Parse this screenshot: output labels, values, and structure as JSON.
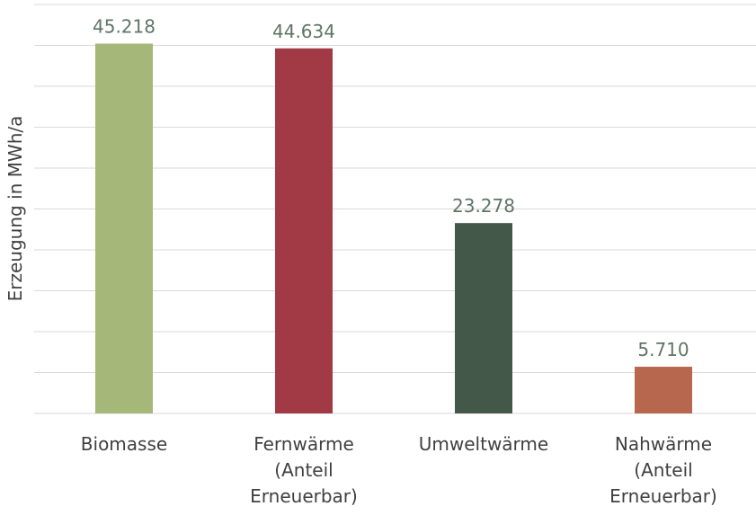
{
  "chart_data": {
    "type": "bar",
    "y_label": "Erzeugung in MWh/a",
    "categories": [
      "Biomasse",
      "Fernwärme (Anteil Erneuerbar)",
      "Umweltwärme",
      "Nahwärme (Anteil Erneuerbar)"
    ],
    "values": [
      45218,
      44634,
      23278,
      5710
    ],
    "value_labels": [
      "45.218",
      "44.634",
      "23.278",
      "5.710"
    ],
    "colors": [
      "#a6b879",
      "#a13a45",
      "#44584a",
      "#b8674f"
    ],
    "ylim": [
      0,
      50000
    ],
    "yticks": [
      0,
      5000,
      10000,
      15000,
      20000,
      25000,
      30000,
      35000,
      40000,
      45000,
      50000
    ],
    "grid": true
  }
}
